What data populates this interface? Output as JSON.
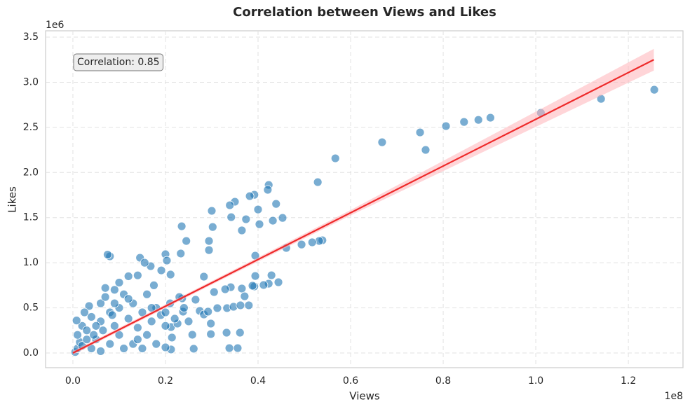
{
  "chart_data": {
    "type": "scatter",
    "title": "Correlation between Views and Likes",
    "x_label": "Views",
    "y_label": "Likes",
    "x_offset_label": "1e8",
    "y_offset_label": "1e6",
    "annotation": "Correlation: 0.85",
    "color": "#1f77b4",
    "grid": true,
    "xlim": [
      -5900000,
      131800000
    ],
    "ylim": [
      -163000,
      3570000
    ],
    "xticks": [
      {
        "value": 0,
        "label": "0.0"
      },
      {
        "value": 20000000,
        "label": "0.2"
      },
      {
        "value": 40000000,
        "label": "0.4"
      },
      {
        "value": 60000000,
        "label": "0.6"
      },
      {
        "value": 80000000,
        "label": "0.8"
      },
      {
        "value": 100000000,
        "label": "1.0"
      },
      {
        "value": 120000000,
        "label": "1.2"
      }
    ],
    "yticks": [
      {
        "value": 0,
        "label": "0.0"
      },
      {
        "value": 500000,
        "label": "0.5"
      },
      {
        "value": 1000000,
        "label": "1.0"
      },
      {
        "value": 1500000,
        "label": "1.5"
      },
      {
        "value": 2000000,
        "label": "2.0"
      },
      {
        "value": 2500000,
        "label": "2.5"
      },
      {
        "value": 3000000,
        "label": "3.0"
      },
      {
        "value": 3500000,
        "label": "3.5"
      }
    ],
    "x": [
      125600000,
      114100000,
      101100000,
      90200000,
      87600000,
      84500000,
      80600000,
      75000000,
      76200000,
      66800000,
      56700000,
      52900000,
      53900000,
      53200000,
      51700000,
      49400000,
      46100000,
      42300000,
      42100000,
      39200000,
      38200000,
      35000000,
      33900000,
      43900000,
      40000000,
      45300000,
      43200000,
      37400000,
      34200000,
      30000000,
      30200000,
      40300000,
      36500000,
      29400000,
      23500000,
      24500000,
      29400000,
      23300000,
      39400000,
      8000000,
      20000000,
      14500000,
      19100000,
      20300000,
      16800000,
      21100000,
      28300000,
      39400000,
      42900000,
      44400000,
      42300000,
      41200000,
      39200000,
      34100000,
      32900000,
      38800000,
      36500000,
      37100000,
      30500000,
      31200000,
      33300000,
      34700000,
      38000000,
      36200000,
      33200000,
      36100000,
      33800000,
      35600000,
      29800000,
      29800000,
      26100000,
      21200000,
      25800000,
      21400000,
      21200000,
      20000000,
      26500000,
      27400000,
      23600000,
      23800000,
      22600000,
      28300000,
      29200000,
      500000,
      1000000,
      1500000,
      1000000,
      2000000,
      800000,
      3000000,
      4000000,
      3500000,
      5000000,
      6000000,
      6000000,
      7000000,
      7000000,
      7500000,
      8000000,
      9000000,
      9000000,
      10000000,
      10000000,
      11000000,
      12000000,
      12000000,
      13000000,
      13000000,
      14000000,
      14000000,
      15000000,
      15500000,
      16000000,
      16000000,
      17000000,
      17500000,
      18000000,
      18000000,
      19000000,
      20000000,
      21000000,
      22000000,
      23000000,
      24000000,
      25000000,
      2000000,
      4000000,
      5000000,
      3000000,
      8000000,
      11000000,
      12000000,
      15000000,
      6000000,
      2500000,
      9000000,
      10000000,
      6500000,
      14000000,
      17000000,
      20000000,
      4500000,
      8500000
    ],
    "values": [
      2917000,
      2816000,
      2661000,
      2607000,
      2583000,
      2560000,
      2514000,
      2444000,
      2250000,
      2335000,
      2157000,
      1893000,
      1249000,
      1241000,
      1226000,
      1202000,
      1164000,
      1862000,
      1808000,
      1753000,
      1738000,
      1676000,
      1637000,
      1652000,
      1590000,
      1497000,
      1466000,
      1482000,
      1505000,
      1575000,
      1396000,
      1427000,
      1358000,
      1241000,
      1404000,
      1241000,
      1140000,
      1102000,
      1078000,
      1071000,
      1094000,
      1055000,
      915000,
      1024000,
      962000,
      869000,
      846000,
      853000,
      861000,
      784000,
      768000,
      753000,
      737000,
      729000,
      706000,
      745000,
      714000,
      628000,
      675000,
      497000,
      497000,
      512000,
      528000,
      528000,
      225000,
      225000,
      54000,
      54000,
      209000,
      326000,
      47000,
      39000,
      202000,
      171000,
      287000,
      62000,
      590000,
      466000,
      605000,
      458000,
      326000,
      427000,
      458000,
      10000,
      50000,
      120000,
      200000,
      300000,
      360000,
      250000,
      400000,
      520000,
      150000,
      350000,
      550000,
      620000,
      720000,
      1090000,
      450000,
      300000,
      700000,
      500000,
      200000,
      650000,
      850000,
      380000,
      550000,
      100000,
      280000,
      860000,
      450000,
      1000000,
      650000,
      200000,
      350000,
      750000,
      500000,
      100000,
      420000,
      300000,
      550000,
      380000,
      620000,
      500000,
      350000,
      80000,
      50000,
      300000,
      150000,
      100000,
      50000,
      600000,
      50000,
      20000,
      450000,
      550000,
      780000,
      250000,
      150000,
      500000,
      450000,
      200000,
      420000
    ],
    "regression": {
      "color": "#ee2a2a",
      "x": [
        0,
        125500000
      ],
      "values": [
        0,
        3250000
      ]
    },
    "band": {
      "color": "#ffb3b8",
      "x": [
        0,
        30000000,
        60000000,
        90000000,
        125500000
      ],
      "lower": [
        -20000,
        757000,
        1524000,
        2261000,
        3130000
      ],
      "upper": [
        20000,
        797000,
        1584000,
        2401000,
        3370000
      ]
    }
  }
}
